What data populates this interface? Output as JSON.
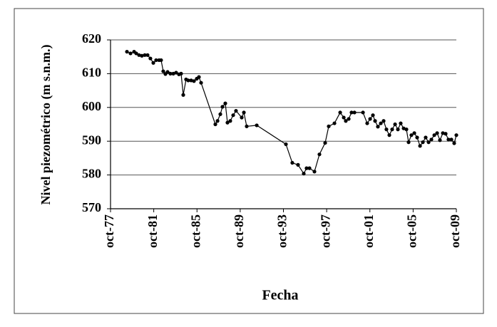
{
  "chart_data": {
    "type": "line",
    "x_label": "Fecha",
    "y_label": "Nivel piezométrico (m s.n.m.)",
    "x": [
      1979.27,
      1979.6,
      1979.93,
      1980.13,
      1980.39,
      1980.65,
      1980.92,
      1981.18,
      1981.44,
      1981.71,
      1981.97,
      1982.24,
      1982.43,
      1982.63,
      1982.83,
      1983.03,
      1983.29,
      1983.56,
      1983.82,
      1984.08,
      1984.28,
      1984.48,
      1984.74,
      1984.94,
      1985.21,
      1985.47,
      1985.73,
      1985.93,
      1986.13,
      1987.45,
      1987.65,
      1987.91,
      1988.11,
      1988.37,
      1988.57,
      1988.83,
      1989.1,
      1989.36,
      1989.89,
      1990.09,
      1990.35,
      1991.28,
      1993.98,
      1994.57,
      1995.1,
      1995.63,
      1995.89,
      1996.16,
      1996.62,
      1997.08,
      1997.61,
      1997.94,
      1998.47,
      1999.0,
      1999.33,
      1999.52,
      1999.79,
      2000.05,
      2000.32,
      2001.11,
      2001.5,
      2001.77,
      2002.03,
      2002.23,
      2002.49,
      2002.76,
      2003.02,
      2003.28,
      2003.55,
      2003.81,
      2004.08,
      2004.34,
      2004.6,
      2004.87,
      2005.13,
      2005.33,
      2005.59,
      2005.86,
      2006.12,
      2006.39,
      2006.65,
      2006.91,
      2007.18,
      2007.44,
      2007.71,
      2007.97,
      2008.23,
      2008.5,
      2008.76,
      2009.02,
      2009.29,
      2009.55,
      2009.75
    ],
    "series": [
      {
        "name": "Nivel piezométrico",
        "color": "#000000",
        "values": [
          616.5,
          616,
          616.5,
          616,
          615.5,
          615.3,
          615.5,
          615.5,
          614.5,
          613.2,
          614,
          614,
          614,
          610.7,
          609.9,
          610.5,
          610,
          610,
          610.3,
          609.8,
          610,
          603.7,
          608.3,
          608,
          608,
          607.8,
          608.5,
          609,
          607.3,
          595,
          596,
          598,
          600.2,
          601.2,
          595.5,
          596,
          597.7,
          599,
          597,
          598.5,
          594.4,
          594.7,
          589.1,
          583.6,
          583,
          580.4,
          582,
          582,
          581,
          586.1,
          589.5,
          594.4,
          595.3,
          598.5,
          597,
          596,
          596.6,
          598.5,
          598.5,
          598.5,
          595.3,
          596.6,
          597.7,
          596,
          594.3,
          595.3,
          596,
          593.5,
          591.8,
          593.5,
          595,
          593.5,
          595.3,
          593.8,
          593.5,
          589.7,
          591.8,
          592.4,
          591.1,
          588.6,
          589.7,
          591.1,
          589.7,
          590.5,
          591.8,
          592.4,
          590.3,
          592.4,
          592.2,
          590.5,
          590.5,
          589.4,
          591.8
        ]
      }
    ],
    "xlim": [
      1977.75,
      2009.75
    ],
    "xticks": [
      {
        "value": 1977.75,
        "label": "oct-77"
      },
      {
        "value": 1981.75,
        "label": "oct-81"
      },
      {
        "value": 1985.75,
        "label": "oct-85"
      },
      {
        "value": 1989.75,
        "label": "oct-89"
      },
      {
        "value": 1993.75,
        "label": "oct-93"
      },
      {
        "value": 1997.75,
        "label": "oct-97"
      },
      {
        "value": 2001.75,
        "label": "oct-01"
      },
      {
        "value": 2005.75,
        "label": "oct-05"
      },
      {
        "value": 2009.75,
        "label": "oct-09"
      }
    ],
    "ylim": [
      570,
      620
    ],
    "yticks": [
      570,
      580,
      590,
      600,
      610,
      620
    ],
    "grid": true
  }
}
